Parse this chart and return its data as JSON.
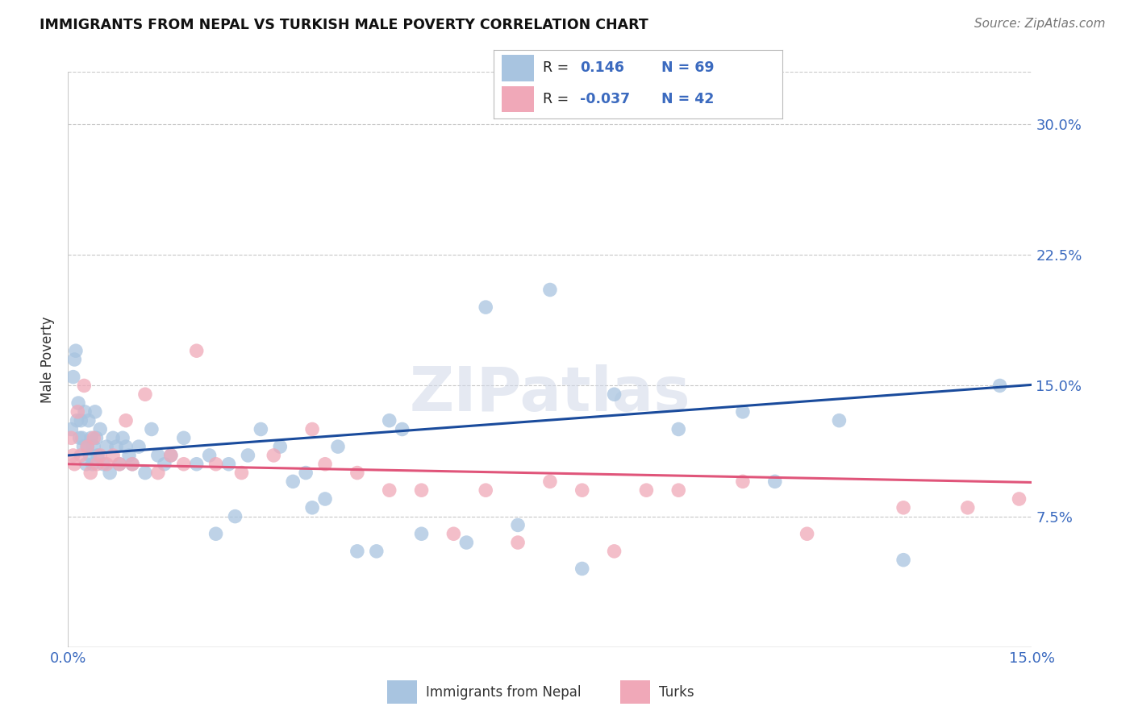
{
  "title": "IMMIGRANTS FROM NEPAL VS TURKISH MALE POVERTY CORRELATION CHART",
  "source": "Source: ZipAtlas.com",
  "ylabel": "Male Poverty",
  "xlim": [
    0.0,
    15.0
  ],
  "ylim": [
    0.0,
    33.0
  ],
  "yticks": [
    0.0,
    7.5,
    15.0,
    22.5,
    30.0
  ],
  "ytick_labels": [
    "",
    "7.5%",
    "15.0%",
    "22.5%",
    "30.0%"
  ],
  "xticks": [
    0.0,
    3.75,
    7.5,
    11.25,
    15.0
  ],
  "xtick_labels": [
    "0.0%",
    "",
    "",
    "",
    "15.0%"
  ],
  "nepal_R": 0.146,
  "nepal_N": 69,
  "turks_R": -0.037,
  "turks_N": 42,
  "nepal_color": "#a8c4e0",
  "turks_color": "#f0a8b8",
  "nepal_line_color": "#1a4b9c",
  "turks_line_color": "#e0557a",
  "watermark": "ZIPatlas",
  "nepal_x": [
    0.05,
    0.08,
    0.1,
    0.12,
    0.14,
    0.16,
    0.18,
    0.2,
    0.22,
    0.24,
    0.26,
    0.28,
    0.3,
    0.32,
    0.34,
    0.36,
    0.38,
    0.4,
    0.42,
    0.44,
    0.46,
    0.5,
    0.55,
    0.6,
    0.65,
    0.7,
    0.75,
    0.8,
    0.85,
    0.9,
    0.95,
    1.0,
    1.1,
    1.2,
    1.3,
    1.4,
    1.5,
    1.6,
    1.8,
    2.0,
    2.2,
    2.5,
    2.8,
    3.0,
    3.3,
    3.7,
    4.2,
    5.0,
    5.5,
    6.5,
    7.5,
    8.5,
    9.5,
    10.5,
    11.0,
    12.0,
    13.0,
    14.5,
    4.8,
    5.2,
    6.2,
    7.0,
    8.0,
    3.5,
    4.0,
    2.3,
    2.6,
    3.8,
    4.5
  ],
  "nepal_y": [
    12.5,
    15.5,
    16.5,
    17.0,
    13.0,
    14.0,
    12.0,
    13.0,
    12.0,
    11.5,
    13.5,
    10.5,
    11.5,
    13.0,
    11.0,
    12.0,
    10.5,
    11.5,
    13.5,
    12.0,
    11.0,
    12.5,
    10.5,
    11.5,
    10.0,
    12.0,
    11.5,
    10.5,
    12.0,
    11.5,
    11.0,
    10.5,
    11.5,
    10.0,
    12.5,
    11.0,
    10.5,
    11.0,
    12.0,
    10.5,
    11.0,
    10.5,
    11.0,
    12.5,
    11.5,
    10.0,
    11.5,
    13.0,
    6.5,
    19.5,
    20.5,
    14.5,
    12.5,
    13.5,
    9.5,
    13.0,
    5.0,
    15.0,
    5.5,
    12.5,
    6.0,
    7.0,
    4.5,
    9.5,
    8.5,
    6.5,
    7.5,
    8.0,
    5.5
  ],
  "turks_x": [
    0.05,
    0.08,
    0.1,
    0.15,
    0.2,
    0.25,
    0.3,
    0.35,
    0.4,
    0.45,
    0.5,
    0.6,
    0.7,
    0.8,
    0.9,
    1.0,
    1.2,
    1.4,
    1.6,
    1.8,
    2.0,
    2.3,
    2.7,
    3.2,
    3.8,
    4.5,
    5.5,
    6.5,
    7.5,
    8.0,
    9.0,
    9.5,
    10.5,
    11.5,
    13.0,
    14.0,
    14.8,
    4.0,
    5.0,
    6.0,
    7.0,
    8.5
  ],
  "turks_y": [
    12.0,
    11.0,
    10.5,
    13.5,
    11.0,
    15.0,
    11.5,
    10.0,
    12.0,
    10.5,
    11.0,
    10.5,
    11.0,
    10.5,
    13.0,
    10.5,
    14.5,
    10.0,
    11.0,
    10.5,
    17.0,
    10.5,
    10.0,
    11.0,
    12.5,
    10.0,
    9.0,
    9.0,
    9.5,
    9.0,
    9.0,
    9.0,
    9.5,
    6.5,
    8.0,
    8.0,
    8.5,
    10.5,
    9.0,
    6.5,
    6.0,
    5.5
  ]
}
